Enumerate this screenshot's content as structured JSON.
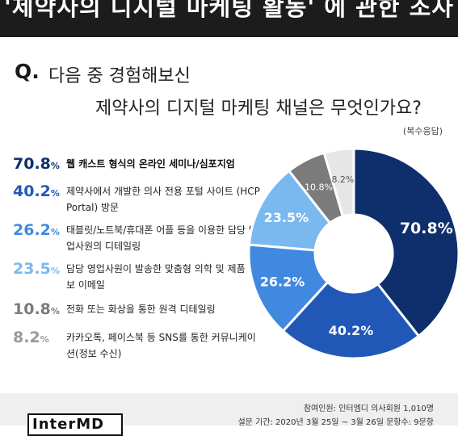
{
  "header": {
    "title": "'제약사의 디지털 마케팅 활동' 에 관한 조사"
  },
  "question": {
    "mark": "Q.",
    "line1": "다음 중 경험해보신",
    "line2": "제약사의 디지털 마케팅 채널은 무엇인가요?",
    "note": "(복수응답)"
  },
  "legend": {
    "items": [
      {
        "value": "70.8",
        "unit": "%",
        "text": "웹 캐스트 형식의 온라인 세미나/심포지엄"
      },
      {
        "value": "40.2",
        "unit": "%",
        "text": "제약사에서 개발한 의사 전용 포털 사이트 (HCP Portal) 방문"
      },
      {
        "value": "26.2",
        "unit": "%",
        "text": "태블릿/노트북/휴대폰 어플 등을 이용한 담당 영업사원의 디테일링"
      },
      {
        "value": "23.5",
        "unit": "%",
        "text": "담당 영업사원이 발송한 맞춤형 의학 및 제품 정보 이메일"
      },
      {
        "value": "10.8",
        "unit": "%",
        "text": "전화 또는 화상을 통한 원격 디테일링"
      },
      {
        "value": "8.2",
        "unit": "%",
        "text": "카카오톡, 페이스북 등 SNS를 통한 커뮤니케이션(정보 수신)"
      }
    ]
  },
  "chart_data": {
    "type": "pie",
    "title": "",
    "categories": [
      "웹 캐스트 형식의 온라인 세미나/심포지엄",
      "제약사에서 개발한 의사 전용 포털 사이트 (HCP Portal) 방문",
      "태블릿/노트북/휴대폰 어플 등을 이용한 담당 영업사원의 디테일링",
      "담당 영업사원이 발송한 맞춤형 의학 및 제품 정보 이메일",
      "전화 또는 화상을 통한 원격 디테일링",
      "카카오톡, 페이스북 등 SNS를 통한 커뮤니케이션(정보 수신)"
    ],
    "values": [
      70.8,
      40.2,
      26.2,
      23.5,
      10.8,
      8.2
    ],
    "labels": [
      "70.8%",
      "40.2%",
      "26.2%",
      "23.5%",
      "10.8%",
      "8.2%"
    ],
    "colors": [
      "#0e2f6b",
      "#2158b8",
      "#4189e0",
      "#7ab8f0",
      "#7b7b7b",
      "#e6e6e6"
    ],
    "label_colors": [
      "#ffffff",
      "#ffffff",
      "#ffffff",
      "#ffffff",
      "#ffffff",
      "#555555"
    ],
    "legend_colors": [
      "#0e2f6b",
      "#2158b8",
      "#4189e0",
      "#7ab8f0",
      "#7b7b7b",
      "#9a9a9a"
    ],
    "donut": true
  },
  "footer": {
    "line1": "참여인원: 인터엠디 의사회원 1,010명",
    "line2": "설문 기간: 2020년 3월 25일 ~ 3월 26일   문항수: 9문항",
    "logo": "InterMD"
  }
}
